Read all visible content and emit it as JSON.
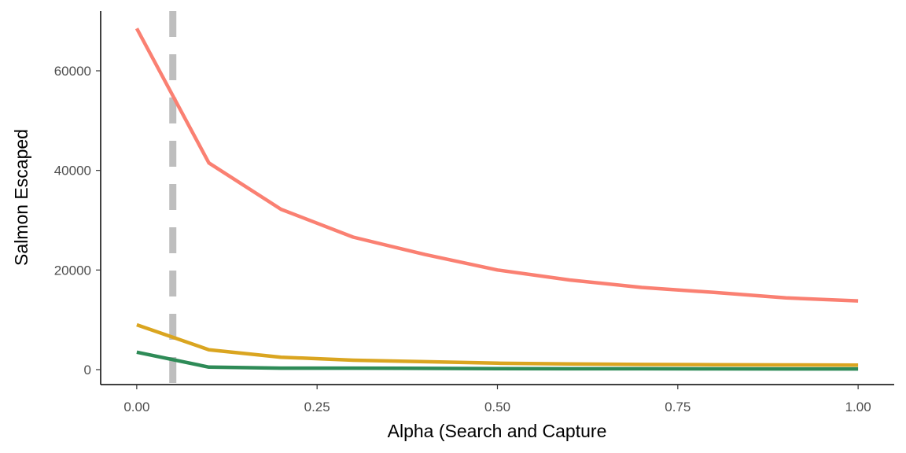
{
  "chart_data": {
    "type": "line",
    "title": "",
    "xlabel": "Alpha (Search and Capture",
    "ylabel": "Salmon Escaped",
    "xlim": [
      -0.05,
      1.05
    ],
    "ylim": [
      -3000,
      72000
    ],
    "x_ticks": [
      0,
      0.25,
      0.5,
      0.75,
      1
    ],
    "x_tick_labels": [
      "0.00",
      "0.25",
      "0.50",
      "0.75",
      "1.00"
    ],
    "y_ticks": [
      0,
      20000,
      40000,
      60000
    ],
    "y_tick_labels": [
      "0",
      "20000",
      "40000",
      "60000"
    ],
    "grid": false,
    "legend": "none",
    "reference_line": {
      "axis": "x",
      "value": 0.05,
      "style": "dashed",
      "color": "#bebebe"
    },
    "x": [
      0,
      0.1,
      0.2,
      0.3,
      0.4,
      0.5,
      0.6,
      0.7,
      0.8,
      0.9,
      1.0
    ],
    "series": [
      {
        "color": "#fa8072",
        "values": [
          68500,
          41500,
          32200,
          26600,
          23100,
          20000,
          18000,
          16500,
          15500,
          14400,
          13800
        ]
      },
      {
        "color": "#daa520",
        "values": [
          9000,
          4000,
          2500,
          1900,
          1600,
          1300,
          1150,
          1050,
          1000,
          950,
          900
        ]
      },
      {
        "color": "#2e8b57",
        "values": [
          3500,
          500,
          300,
          300,
          250,
          200,
          180,
          170,
          160,
          150,
          140
        ]
      }
    ]
  }
}
